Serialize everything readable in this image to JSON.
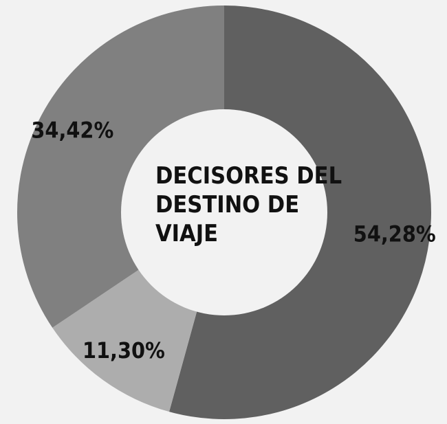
{
  "chart_data": {
    "type": "pie",
    "title": "DECISORES DEL DESTINO DE VIAJE",
    "title_lines": [
      "DECISORES DEL",
      "DESTINO DE",
      "VIAJE"
    ],
    "slices": [
      {
        "label": "54,28%",
        "value": 54.28,
        "color": "#606060"
      },
      {
        "label": "11,30%",
        "value": 11.3,
        "color": "#adadad"
      },
      {
        "label": "34,42%",
        "value": 34.42,
        "color": "#808080"
      }
    ],
    "legend": "none"
  },
  "colors": {
    "background": "#f2f2f2",
    "center": "#f2f2f2",
    "text": "#111111"
  }
}
